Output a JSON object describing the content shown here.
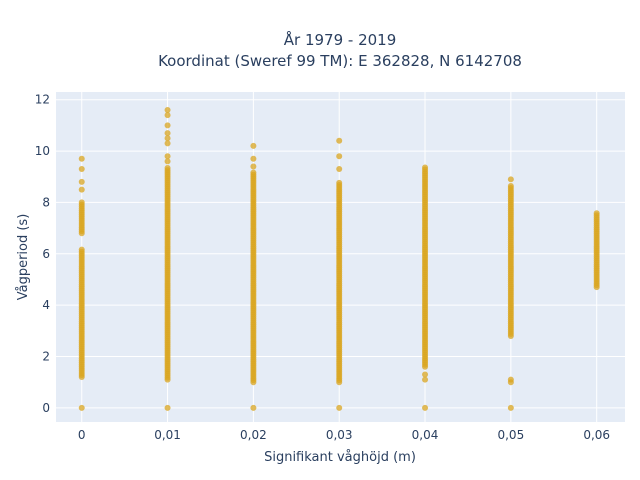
{
  "chart_data": {
    "type": "scatter",
    "title": "År 1979 - 2019",
    "subtitle": "Koordinat (Sweref 99 TM): E 362828, N 6142708",
    "xlabel": "Signifikant våghöjd (m)",
    "ylabel": "Vågperiod (s)",
    "xlim": [
      -0.003,
      0.0633
    ],
    "ylim": [
      -0.55,
      12.3
    ],
    "x_ticks": [
      0,
      0.01,
      0.02,
      0.03,
      0.04,
      0.05,
      0.06
    ],
    "x_tick_labels": [
      "0",
      "0,01",
      "0,02",
      "0,03",
      "0,04",
      "0,05",
      "0,06"
    ],
    "y_ticks": [
      0,
      2,
      4,
      6,
      8,
      10,
      12
    ],
    "y_tick_labels": [
      "0",
      "2",
      "4",
      "6",
      "8",
      "10",
      "12"
    ],
    "grid": true,
    "plot_bg": "#e5ecf6",
    "marker_color": "#DAA520",
    "series": [
      {
        "points_by_x": [
          {
            "x": 0,
            "bands": [
              [
                1.2,
                6.2
              ],
              [
                6.8,
                8.0
              ]
            ],
            "singles": [
              0,
              8.5,
              8.8,
              9.3,
              9.7
            ]
          },
          {
            "x": 0.01,
            "bands": [
              [
                1.1,
                9.4
              ]
            ],
            "singles": [
              0,
              9.6,
              9.8,
              10.3,
              10.5,
              10.7,
              11.0,
              11.4,
              11.6
            ]
          },
          {
            "x": 0.02,
            "bands": [
              [
                1.0,
                9.2
              ]
            ],
            "singles": [
              0,
              9.4,
              9.7,
              10.2
            ]
          },
          {
            "x": 0.03,
            "bands": [
              [
                1.0,
                8.8
              ]
            ],
            "singles": [
              0,
              9.3,
              9.8,
              10.4
            ]
          },
          {
            "x": 0.04,
            "bands": [
              [
                1.6,
                9.4
              ]
            ],
            "singles": [
              0,
              1.1,
              1.3
            ]
          },
          {
            "x": 0.05,
            "bands": [
              [
                2.8,
                8.7
              ]
            ],
            "singles": [
              0,
              1.0,
              1.1,
              8.9
            ]
          },
          {
            "x": 0.06,
            "bands": [
              [
                4.7,
                7.6
              ]
            ],
            "singles": []
          }
        ]
      }
    ]
  }
}
